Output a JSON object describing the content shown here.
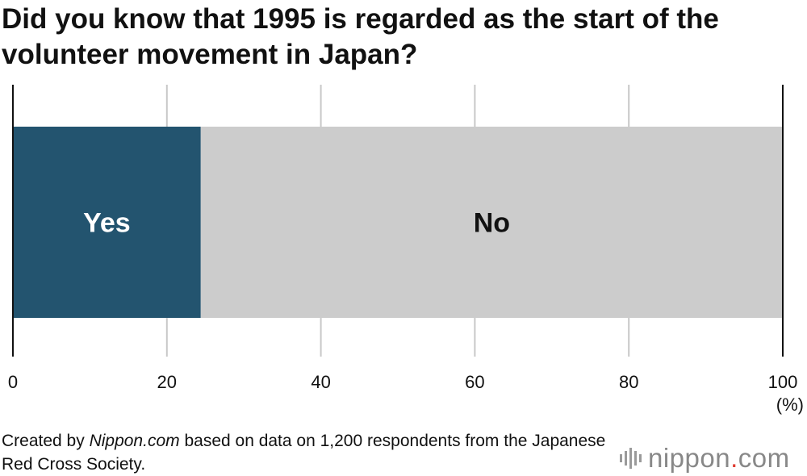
{
  "title": "Did you know that 1995 is regarded as the start of the volunteer movement in Japan?",
  "chart_data": {
    "type": "bar",
    "orientation": "horizontal",
    "stacked": true,
    "title": "Did you know that 1995 is regarded as the start of the volunteer movement in Japan?",
    "segments": [
      {
        "label": "Yes",
        "value": 24.4,
        "color": "#23546f",
        "label_color": "#ffffff"
      },
      {
        "label": "No",
        "value": 75.6,
        "color": "#cccccc",
        "label_color": "#111111"
      }
    ],
    "xlim": [
      0,
      100
    ],
    "xticks": [
      "0",
      "20",
      "40",
      "60",
      "80",
      "100"
    ],
    "unit": "(%)",
    "grid": true
  },
  "footer": {
    "prefix": "Created by ",
    "source": "Nippon.com",
    "suffix": " based on data on 1,200 respondents from the Japanese Red Cross Society."
  },
  "logo": {
    "name": "nippon",
    "dot": ".",
    "tld": "com",
    "accent": "#e03c31"
  }
}
